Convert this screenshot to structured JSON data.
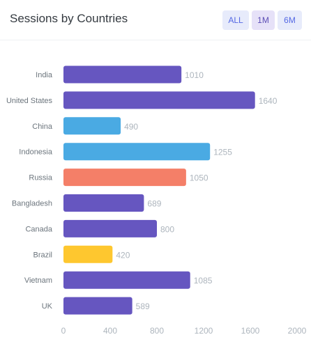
{
  "header": {
    "title": "Sessions by Countries",
    "ranges": [
      "ALL",
      "1M",
      "6M"
    ]
  },
  "colors": {
    "purple": "#6656c0",
    "blue": "#4aaae3",
    "coral": "#f47f68",
    "yellow": "#fec72f"
  },
  "chart_data": {
    "type": "bar",
    "orientation": "horizontal",
    "categories": [
      "India",
      "United States",
      "China",
      "Indonesia",
      "Russia",
      "Bangladesh",
      "Canada",
      "Brazil",
      "Vietnam",
      "UK"
    ],
    "values": [
      1010,
      1640,
      490,
      1255,
      1050,
      689,
      800,
      420,
      1085,
      589
    ],
    "bar_colors": [
      "#6656c0",
      "#6656c0",
      "#4aaae3",
      "#4aaae3",
      "#f47f68",
      "#6656c0",
      "#6656c0",
      "#fec72f",
      "#6656c0",
      "#6656c0"
    ],
    "xlim": [
      0,
      2000
    ],
    "xticks": [
      0,
      400,
      800,
      1200,
      1600,
      2000
    ],
    "grid": false,
    "legend": "none",
    "data_labels": true
  }
}
